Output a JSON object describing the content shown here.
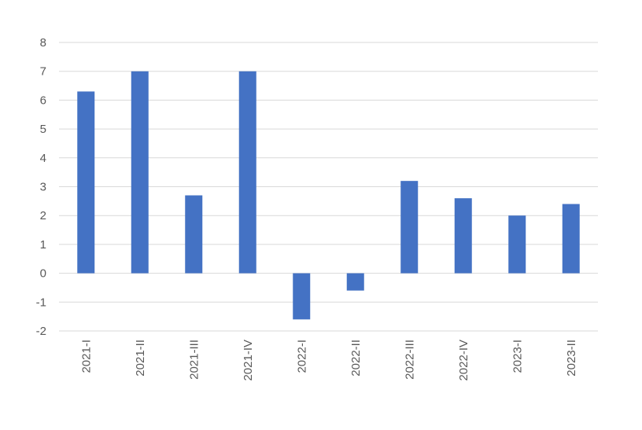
{
  "chart_data": {
    "type": "bar",
    "title": "",
    "xlabel": "",
    "ylabel": "",
    "categories": [
      "2021-I",
      "2021-II",
      "2021-III",
      "2021-IV",
      "2022-I",
      "2022-II",
      "2022-III",
      "2022-IV",
      "2023-I",
      "2023-II"
    ],
    "values": [
      6.3,
      7.0,
      2.7,
      7.0,
      -1.6,
      -0.6,
      3.2,
      2.6,
      2.0,
      2.4
    ],
    "ylim": [
      -2,
      8
    ],
    "yticks": [
      "-2",
      "-1",
      "0",
      "1",
      "2",
      "3",
      "4",
      "5",
      "6",
      "7",
      "8"
    ],
    "grid": true,
    "legend": "none",
    "bar_color": "#4472c4"
  }
}
